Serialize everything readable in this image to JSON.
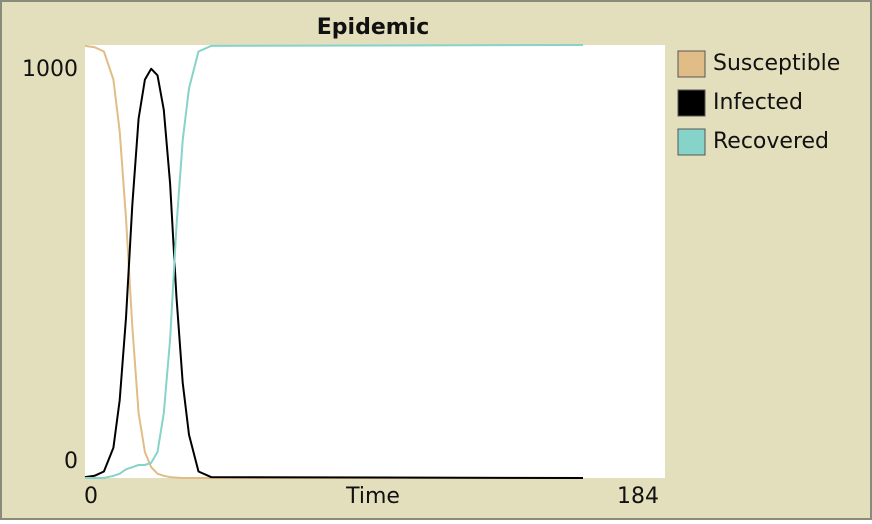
{
  "chart_data": {
    "type": "line",
    "title": "Epidemic",
    "x_label": "Time",
    "x": [
      0,
      3,
      6,
      9,
      11,
      13,
      15,
      17,
      19,
      21,
      23,
      25,
      27,
      29,
      31,
      33,
      36,
      40,
      158
    ],
    "series": [
      {
        "name": "Susceptible",
        "color": "#e0bd86",
        "values": [
          998,
          995,
          985,
          920,
          800,
          600,
          350,
          150,
          60,
          25,
          10,
          5,
          2,
          1,
          0,
          0,
          0,
          0,
          0
        ]
      },
      {
        "name": "Infected",
        "color": "#000000",
        "values": [
          2,
          5,
          15,
          70,
          180,
          370,
          630,
          830,
          920,
          945,
          930,
          850,
          680,
          420,
          220,
          100,
          15,
          2,
          0
        ]
      },
      {
        "name": "Recovered",
        "color": "#86d3c9",
        "values": [
          0,
          0,
          0,
          5,
          10,
          20,
          25,
          30,
          30,
          35,
          60,
          150,
          320,
          580,
          780,
          900,
          985,
          998,
          1000
        ]
      }
    ],
    "xlim": [
      0,
      184
    ],
    "xticks": [
      0,
      184
    ],
    "ylim": [
      0,
      1000
    ],
    "yticks": [
      0,
      1000
    ]
  }
}
